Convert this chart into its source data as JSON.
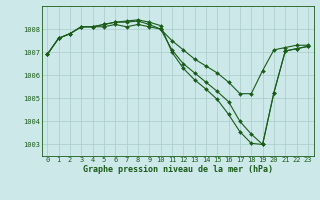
{
  "background_color": "#cce8e8",
  "plot_bg_color": "#cce8e8",
  "grid_color": "#aacccc",
  "line_color": "#1a5c1a",
  "xlabel": "Graphe pression niveau de la mer (hPa)",
  "ylim": [
    1002.5,
    1009.0
  ],
  "xlim": [
    -0.5,
    23.5
  ],
  "yticks": [
    1003,
    1004,
    1005,
    1006,
    1007,
    1008
  ],
  "xticks": [
    0,
    1,
    2,
    3,
    4,
    5,
    6,
    7,
    8,
    9,
    10,
    11,
    12,
    13,
    14,
    15,
    16,
    17,
    18,
    19,
    20,
    21,
    22,
    23
  ],
  "series": [
    [
      1006.9,
      1007.6,
      1007.8,
      1008.1,
      1008.1,
      1008.1,
      1008.2,
      1008.1,
      1008.2,
      1008.1,
      1008.0,
      1007.5,
      1007.1,
      1006.7,
      1006.4,
      1006.1,
      1005.7,
      1005.2,
      1005.2,
      1006.2,
      1007.1,
      1007.2,
      1007.3,
      1007.3
    ],
    [
      1006.9,
      1007.6,
      1007.8,
      1008.1,
      1008.1,
      1008.2,
      1008.3,
      1008.3,
      1008.35,
      1008.2,
      1008.0,
      1007.1,
      1006.5,
      1006.1,
      1005.7,
      1005.3,
      1004.85,
      1004.0,
      1003.45,
      1003.0,
      1005.25,
      1007.05,
      1007.15,
      1007.25
    ],
    [
      1006.9,
      1007.6,
      1007.8,
      1008.1,
      1008.1,
      1008.2,
      1008.3,
      1008.35,
      1008.4,
      1008.3,
      1008.15,
      1007.0,
      1006.3,
      1005.8,
      1005.4,
      1004.95,
      1004.3,
      1003.55,
      1003.05,
      1003.0,
      1005.25,
      1007.05,
      1007.15,
      1007.25
    ]
  ],
  "tick_fontsize": 5,
  "xlabel_fontsize": 6,
  "marker_size": 2.0,
  "linewidth": 0.8
}
